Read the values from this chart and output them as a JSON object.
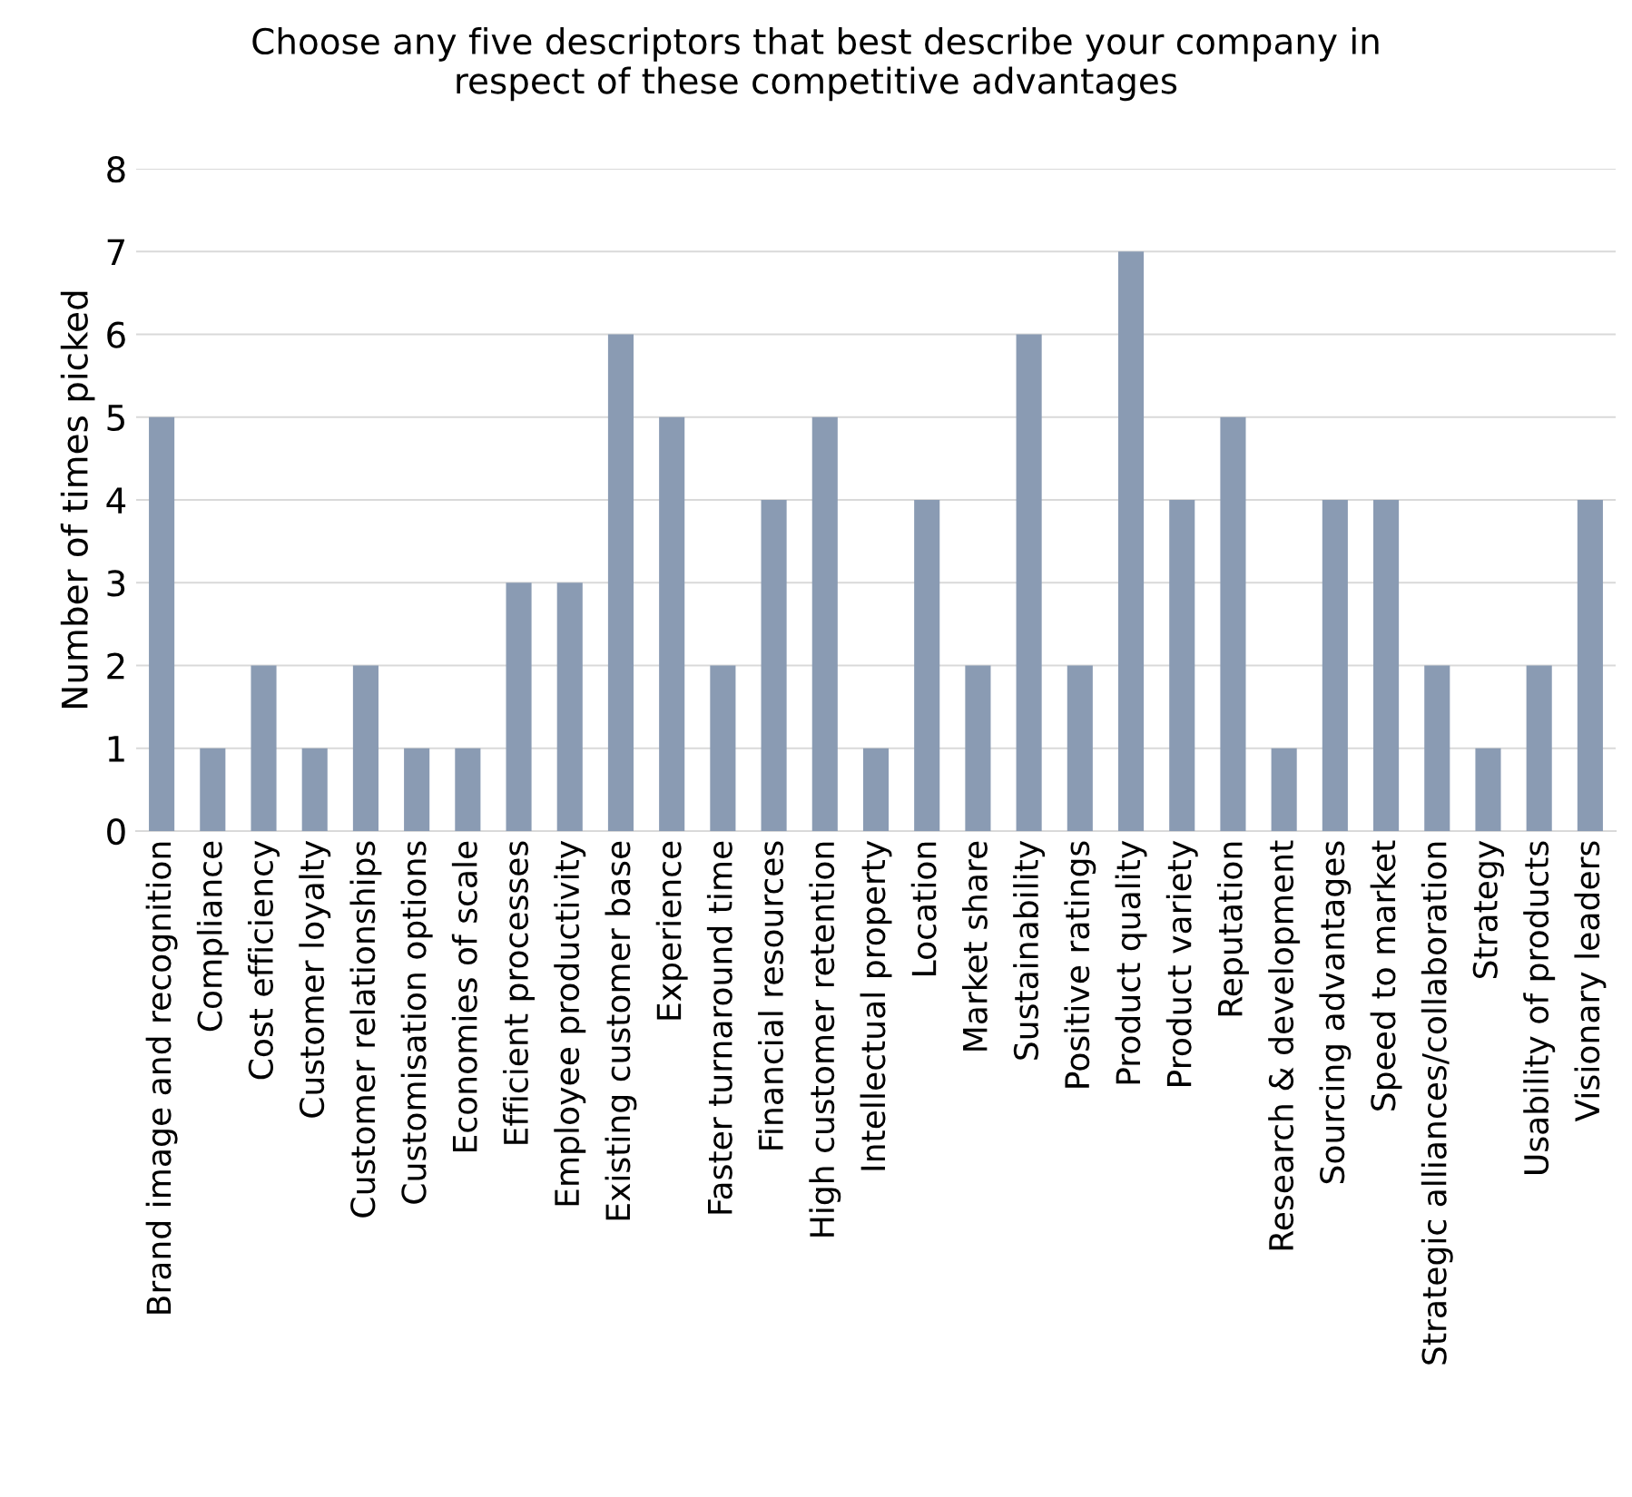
{
  "chart_data": {
    "type": "bar",
    "title": "Choose any five descriptors that best describe your company in\nrespect of these competitive advantages",
    "ylabel": "Number of times picked",
    "categories": [
      "Brand image and recognition",
      "Compliance",
      "Cost efficiency",
      "Customer loyalty",
      "Customer relationships",
      "Customisation options",
      "Economies of scale",
      "Efficient processes",
      "Employee productivity",
      "Existing customer base",
      "Experience",
      "Faster turnaround time",
      "Financial resources",
      "High customer retention",
      "Intellectual property",
      "Location",
      "Market share",
      "Sustainability",
      "Positive ratings",
      "Product quality",
      "Product variety",
      "Reputation",
      "Research & development",
      "Sourcing advantages",
      "Speed to market",
      "Strategic alliances/collaboration",
      "Strategy",
      "Usability of products",
      "Visionary leaders"
    ],
    "values": [
      5,
      1,
      2,
      1,
      2,
      1,
      1,
      3,
      3,
      6,
      5,
      2,
      4,
      5,
      1,
      4,
      2,
      6,
      2,
      7,
      4,
      5,
      1,
      4,
      4,
      2,
      1,
      2,
      4
    ],
    "color": "#8a9bb3",
    "ylim": [
      0,
      8
    ],
    "yticks": [
      0,
      1,
      2,
      3,
      4,
      5,
      6,
      7,
      8
    ],
    "grid": "y"
  }
}
